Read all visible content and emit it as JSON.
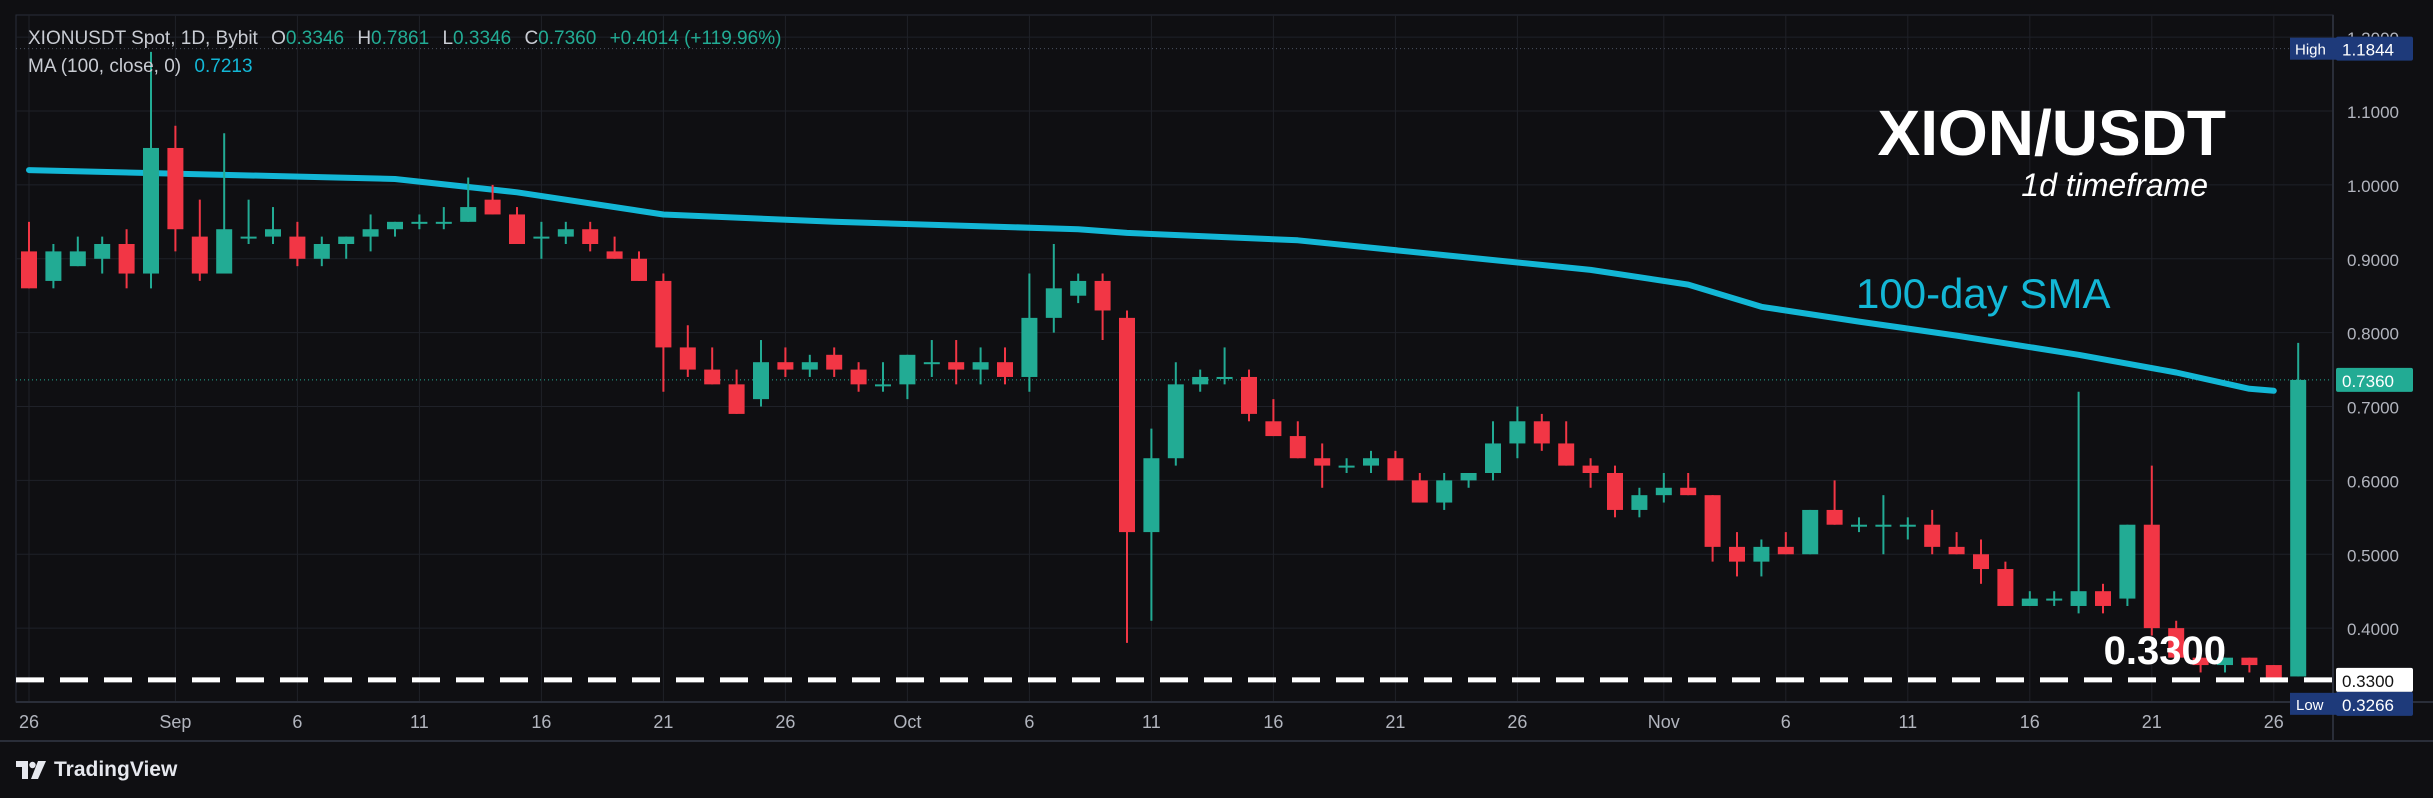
{
  "header": {
    "symbol_line": "XIONUSDT Spot, 1D, Bybit",
    "o_label": "O",
    "o_value": "0.3346",
    "h_label": "H",
    "h_value": "0.7861",
    "l_label": "L",
    "l_value": "0.3346",
    "c_label": "C",
    "c_value": "0.7360",
    "change": "+0.4014 (+119.96%)",
    "ma_label": "MA (100, close, 0)",
    "ma_value": "0.7213"
  },
  "branding": {
    "logo_text": "TradingView"
  },
  "colors": {
    "up": "#22ab94",
    "down": "#f23645",
    "sma": "#13b7d6",
    "background": "#0f0f12",
    "grid": "#1f2128",
    "text": "#b2b5be"
  },
  "chart_data": {
    "type": "candlestick",
    "title": "XION/USDT",
    "subtitle": "1d timeframe",
    "sma_label": "100-day SMA",
    "support_label": "0.3300",
    "support_level": 0.33,
    "ylim": [
      0.3,
      1.23
    ],
    "y_ticks": [
      "0.4000",
      "0.5000",
      "0.6000",
      "0.7000",
      "0.8000",
      "0.9000",
      "1.0000",
      "1.1000",
      "1.2000"
    ],
    "x_ticks": [
      {
        "day": 0,
        "label": "26"
      },
      {
        "day": 6,
        "label": "Sep"
      },
      {
        "day": 11,
        "label": "6"
      },
      {
        "day": 16,
        "label": "11"
      },
      {
        "day": 21,
        "label": "16"
      },
      {
        "day": 26,
        "label": "21"
      },
      {
        "day": 31,
        "label": "26"
      },
      {
        "day": 36,
        "label": "Oct"
      },
      {
        "day": 41,
        "label": "6"
      },
      {
        "day": 46,
        "label": "11"
      },
      {
        "day": 51,
        "label": "16"
      },
      {
        "day": 56,
        "label": "21"
      },
      {
        "day": 61,
        "label": "26"
      },
      {
        "day": 67,
        "label": "Nov"
      },
      {
        "day": 72,
        "label": "6"
      },
      {
        "day": 77,
        "label": "11"
      },
      {
        "day": 82,
        "label": "16"
      },
      {
        "day": 87,
        "label": "21"
      },
      {
        "day": 92,
        "label": "26"
      }
    ],
    "price_labels": {
      "high": {
        "label": "High",
        "value": "1.1844",
        "price": 1.1844
      },
      "current": {
        "value": "0.7360",
        "price": 0.736
      },
      "sma": {
        "value": "0.7213",
        "price": 0.7213
      },
      "support": {
        "value": "0.3300",
        "price": 0.33
      },
      "low": {
        "label": "Low",
        "value": "0.3266",
        "price": 0.3266
      }
    },
    "candles": [
      [
        0.91,
        0.95,
        0.86,
        0.86
      ],
      [
        0.87,
        0.92,
        0.86,
        0.91
      ],
      [
        0.89,
        0.93,
        0.89,
        0.91
      ],
      [
        0.9,
        0.93,
        0.88,
        0.92
      ],
      [
        0.92,
        0.94,
        0.86,
        0.88
      ],
      [
        0.88,
        1.18,
        0.86,
        1.05
      ],
      [
        1.05,
        1.08,
        0.91,
        0.94
      ],
      [
        0.93,
        0.98,
        0.87,
        0.88
      ],
      [
        0.88,
        1.07,
        0.88,
        0.94
      ],
      [
        0.93,
        0.98,
        0.92,
        0.93
      ],
      [
        0.93,
        0.97,
        0.92,
        0.94
      ],
      [
        0.93,
        0.95,
        0.89,
        0.9
      ],
      [
        0.9,
        0.93,
        0.89,
        0.92
      ],
      [
        0.92,
        0.93,
        0.9,
        0.93
      ],
      [
        0.93,
        0.96,
        0.91,
        0.94
      ],
      [
        0.94,
        0.95,
        0.93,
        0.95
      ],
      [
        0.95,
        0.96,
        0.94,
        0.95
      ],
      [
        0.95,
        0.97,
        0.94,
        0.95
      ],
      [
        0.95,
        1.01,
        0.95,
        0.97
      ],
      [
        0.98,
        1.0,
        0.96,
        0.96
      ],
      [
        0.96,
        0.97,
        0.92,
        0.92
      ],
      [
        0.93,
        0.95,
        0.9,
        0.93
      ],
      [
        0.93,
        0.95,
        0.92,
        0.94
      ],
      [
        0.94,
        0.95,
        0.91,
        0.92
      ],
      [
        0.91,
        0.93,
        0.9,
        0.9
      ],
      [
        0.9,
        0.91,
        0.87,
        0.87
      ],
      [
        0.87,
        0.88,
        0.72,
        0.78
      ],
      [
        0.78,
        0.81,
        0.74,
        0.75
      ],
      [
        0.75,
        0.78,
        0.73,
        0.73
      ],
      [
        0.73,
        0.75,
        0.69,
        0.69
      ],
      [
        0.71,
        0.79,
        0.7,
        0.76
      ],
      [
        0.76,
        0.78,
        0.74,
        0.75
      ],
      [
        0.75,
        0.77,
        0.74,
        0.76
      ],
      [
        0.77,
        0.78,
        0.74,
        0.75
      ],
      [
        0.75,
        0.76,
        0.72,
        0.73
      ],
      [
        0.73,
        0.76,
        0.72,
        0.73
      ],
      [
        0.73,
        0.77,
        0.71,
        0.77
      ],
      [
        0.76,
        0.79,
        0.74,
        0.76
      ],
      [
        0.76,
        0.79,
        0.73,
        0.75
      ],
      [
        0.75,
        0.78,
        0.73,
        0.76
      ],
      [
        0.76,
        0.78,
        0.73,
        0.74
      ],
      [
        0.74,
        0.88,
        0.72,
        0.82
      ],
      [
        0.82,
        0.92,
        0.8,
        0.86
      ],
      [
        0.85,
        0.88,
        0.84,
        0.87
      ],
      [
        0.87,
        0.88,
        0.79,
        0.83
      ],
      [
        0.82,
        0.83,
        0.38,
        0.53
      ],
      [
        0.53,
        0.67,
        0.41,
        0.63
      ],
      [
        0.63,
        0.76,
        0.62,
        0.73
      ],
      [
        0.73,
        0.75,
        0.72,
        0.74
      ],
      [
        0.74,
        0.78,
        0.73,
        0.74
      ],
      [
        0.74,
        0.75,
        0.68,
        0.69
      ],
      [
        0.68,
        0.71,
        0.66,
        0.66
      ],
      [
        0.66,
        0.68,
        0.63,
        0.63
      ],
      [
        0.63,
        0.65,
        0.59,
        0.62
      ],
      [
        0.62,
        0.63,
        0.61,
        0.62
      ],
      [
        0.62,
        0.64,
        0.61,
        0.63
      ],
      [
        0.63,
        0.64,
        0.6,
        0.6
      ],
      [
        0.6,
        0.61,
        0.57,
        0.57
      ],
      [
        0.57,
        0.61,
        0.56,
        0.6
      ],
      [
        0.6,
        0.61,
        0.59,
        0.61
      ],
      [
        0.61,
        0.68,
        0.6,
        0.65
      ],
      [
        0.65,
        0.7,
        0.63,
        0.68
      ],
      [
        0.68,
        0.69,
        0.64,
        0.65
      ],
      [
        0.65,
        0.68,
        0.62,
        0.62
      ],
      [
        0.62,
        0.63,
        0.59,
        0.61
      ],
      [
        0.61,
        0.62,
        0.55,
        0.56
      ],
      [
        0.56,
        0.59,
        0.55,
        0.58
      ],
      [
        0.58,
        0.61,
        0.57,
        0.59
      ],
      [
        0.59,
        0.61,
        0.58,
        0.58
      ],
      [
        0.58,
        0.58,
        0.49,
        0.51
      ],
      [
        0.51,
        0.53,
        0.47,
        0.49
      ],
      [
        0.49,
        0.52,
        0.47,
        0.51
      ],
      [
        0.51,
        0.53,
        0.5,
        0.5
      ],
      [
        0.5,
        0.56,
        0.5,
        0.56
      ],
      [
        0.56,
        0.6,
        0.54,
        0.54
      ],
      [
        0.54,
        0.55,
        0.53,
        0.54
      ],
      [
        0.54,
        0.58,
        0.5,
        0.54
      ],
      [
        0.54,
        0.55,
        0.52,
        0.54
      ],
      [
        0.54,
        0.56,
        0.5,
        0.51
      ],
      [
        0.51,
        0.53,
        0.5,
        0.5
      ],
      [
        0.5,
        0.52,
        0.46,
        0.48
      ],
      [
        0.48,
        0.49,
        0.43,
        0.43
      ],
      [
        0.43,
        0.45,
        0.43,
        0.44
      ],
      [
        0.44,
        0.45,
        0.43,
        0.44
      ],
      [
        0.43,
        0.72,
        0.42,
        0.45
      ],
      [
        0.45,
        0.46,
        0.42,
        0.43
      ],
      [
        0.44,
        0.54,
        0.43,
        0.54
      ],
      [
        0.54,
        0.62,
        0.39,
        0.4
      ],
      [
        0.4,
        0.41,
        0.36,
        0.36
      ],
      [
        0.36,
        0.36,
        0.34,
        0.35
      ],
      [
        0.35,
        0.36,
        0.34,
        0.36
      ],
      [
        0.36,
        0.36,
        0.34,
        0.35
      ],
      [
        0.35,
        0.35,
        0.33,
        0.33
      ],
      [
        0.3346,
        0.7861,
        0.3346,
        0.736
      ]
    ],
    "sma_points": [
      {
        "day": 0,
        "value": 1.02
      },
      {
        "day": 10,
        "value": 1.012
      },
      {
        "day": 15,
        "value": 1.008
      },
      {
        "day": 20,
        "value": 0.99
      },
      {
        "day": 26,
        "value": 0.96
      },
      {
        "day": 33,
        "value": 0.95
      },
      {
        "day": 43,
        "value": 0.94
      },
      {
        "day": 45,
        "value": 0.935
      },
      {
        "day": 52,
        "value": 0.925
      },
      {
        "day": 58,
        "value": 0.905
      },
      {
        "day": 64,
        "value": 0.885
      },
      {
        "day": 68,
        "value": 0.865
      },
      {
        "day": 71,
        "value": 0.835
      },
      {
        "day": 75,
        "value": 0.815
      },
      {
        "day": 79,
        "value": 0.796
      },
      {
        "day": 84,
        "value": 0.77
      },
      {
        "day": 88,
        "value": 0.746
      },
      {
        "day": 91,
        "value": 0.724
      },
      {
        "day": 92,
        "value": 0.7213
      }
    ]
  }
}
